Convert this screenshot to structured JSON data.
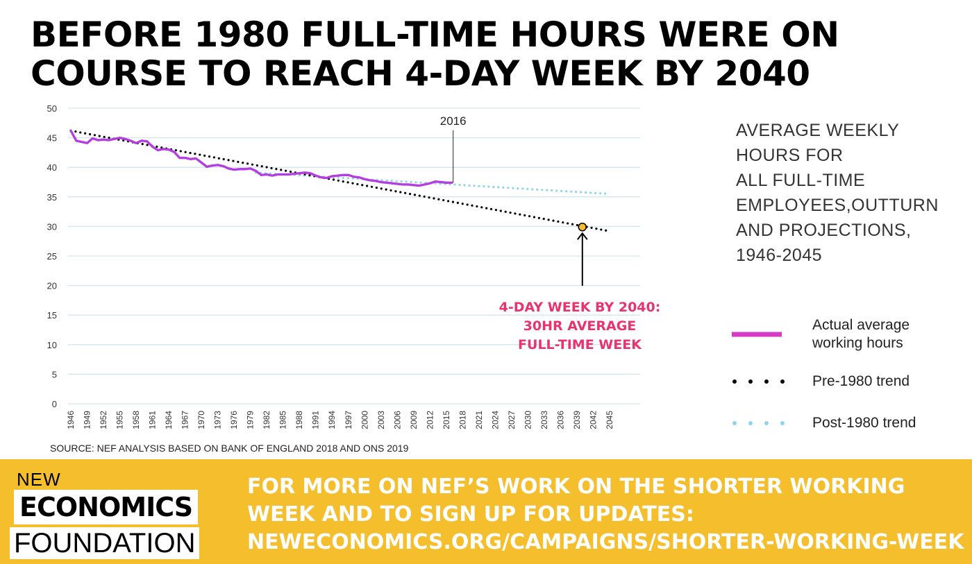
{
  "title": {
    "line1": "BEFORE 1980 FULL-TIME HOURS WERE ON",
    "line2": "COURSE TO REACH 4-DAY WEEK BY 2040"
  },
  "side_title": {
    "lines": [
      "AVERAGE WEEKLY",
      "HOURS FOR",
      "ALL FULL-TIME",
      "EMPLOYEES,OUTTURN",
      "AND PROJECTIONS,",
      "1946-2045"
    ]
  },
  "legend": [
    {
      "label": "Actual average working hours",
      "style": "solid",
      "color": "#d63bc6"
    },
    {
      "label": "Pre-1980 trend",
      "style": "dotted",
      "color": "#000000"
    },
    {
      "label": "Post-1980 trend",
      "style": "dotted",
      "color": "#8fd3ee"
    }
  ],
  "source": "SOURCE: NEF ANALYSIS BASED ON BANK OF ENGLAND 2018 AND ONS 2019",
  "footer": {
    "logo_line1": "NEW",
    "logo_line2": "ECONOMICS",
    "logo_line3": "FOUNDATION",
    "text_lines": [
      "FOR MORE ON NEF’S WORK ON THE SHORTER WORKING",
      "WEEK AND TO SIGN UP FOR UPDATES:",
      "NEWECONOMICS.ORG/CAMPAIGNS/SHORTER-WORKING-WEEK"
    ]
  },
  "chart_data": {
    "type": "line",
    "title": "",
    "xlabel": "",
    "ylabel": "",
    "xlim": [
      1946,
      2045
    ],
    "ylim": [
      0,
      50
    ],
    "yticks": [
      0,
      5,
      10,
      15,
      20,
      25,
      30,
      35,
      40,
      45,
      50
    ],
    "xticks": [
      1946,
      1949,
      1952,
      1955,
      1958,
      1961,
      1964,
      1967,
      1970,
      1973,
      1976,
      1979,
      1982,
      1985,
      1988,
      1991,
      1994,
      1997,
      2000,
      2003,
      2006,
      2009,
      2012,
      2015,
      2018,
      2021,
      2024,
      2027,
      2030,
      2033,
      2036,
      2039,
      2042,
      2045
    ],
    "grid": true,
    "series": [
      {
        "name": "Actual average working hours",
        "color": "#b43ee0",
        "style": "solid",
        "x": [
          1946,
          1947,
          1948,
          1949,
          1950,
          1951,
          1952,
          1953,
          1954,
          1955,
          1956,
          1957,
          1958,
          1959,
          1960,
          1961,
          1962,
          1963,
          1964,
          1965,
          1966,
          1967,
          1968,
          1969,
          1970,
          1971,
          1972,
          1973,
          1974,
          1975,
          1976,
          1977,
          1978,
          1979,
          1980,
          1981,
          1982,
          1983,
          1984,
          1985,
          1986,
          1987,
          1988,
          1989,
          1990,
          1991,
          1992,
          1993,
          1994,
          1995,
          1996,
          1997,
          1998,
          1999,
          2000,
          2001,
          2002,
          2003,
          2004,
          2005,
          2006,
          2007,
          2008,
          2009,
          2010,
          2011,
          2012,
          2013,
          2014,
          2015,
          2016
        ],
        "y": [
          46.2,
          44.5,
          44.3,
          44.1,
          44.9,
          44.6,
          44.7,
          44.6,
          44.8,
          45.0,
          44.8,
          44.5,
          44.1,
          44.5,
          44.4,
          43.5,
          42.9,
          43.1,
          43.0,
          42.6,
          41.6,
          41.6,
          41.4,
          41.5,
          40.8,
          40.1,
          40.3,
          40.4,
          40.2,
          39.8,
          39.6,
          39.7,
          39.7,
          39.8,
          39.4,
          38.7,
          38.8,
          38.6,
          38.8,
          38.8,
          38.8,
          38.9,
          39.0,
          39.1,
          39.0,
          38.6,
          38.3,
          38.2,
          38.5,
          38.6,
          38.7,
          38.7,
          38.4,
          38.3,
          38.0,
          37.8,
          37.7,
          37.5,
          37.4,
          37.3,
          37.2,
          37.1,
          37.1,
          37.0,
          36.9,
          37.1,
          37.3,
          37.6,
          37.5,
          37.4,
          37.4
        ]
      },
      {
        "name": "Pre-1980 trend",
        "color": "#000000",
        "style": "dotted",
        "x": [
          1946,
          2045
        ],
        "y": [
          46.2,
          29.2
        ]
      },
      {
        "name": "Post-1980 trend",
        "color": "#8fd3ee",
        "style": "dotted",
        "x": [
          1980,
          2045
        ],
        "y": [
          39.1,
          35.5
        ]
      }
    ],
    "annotations": [
      {
        "text": "2016",
        "x": 2016,
        "y": 37.4
      },
      {
        "text": "4-DAY WEEK BY 2040: 30HR AVERAGE FULL-TIME WEEK",
        "lines": [
          "4-DAY WEEK BY 2040:",
          "30HR AVERAGE",
          "FULL-TIME WEEK"
        ],
        "x": 2040,
        "y": 29.9,
        "color": "#e8336e"
      }
    ]
  }
}
